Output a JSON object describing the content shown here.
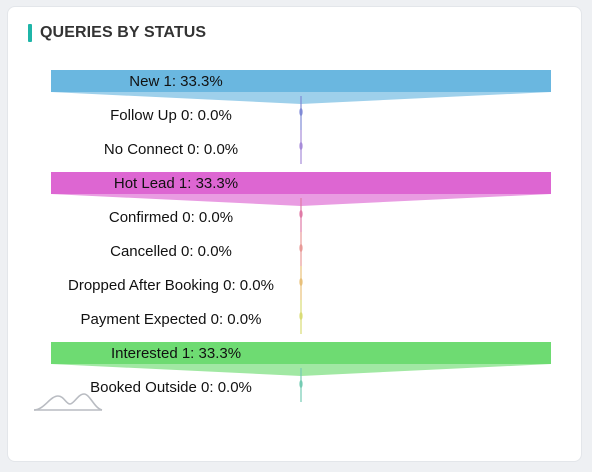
{
  "widget": {
    "title": "QUERIES BY STATUS",
    "accent_color": "#1fb5a8",
    "logo_icon": "hills-watermark-icon"
  },
  "chart_data": {
    "type": "funnel",
    "title": "QUERIES BY STATUS",
    "stages": [
      {
        "label": "New 1: 33.3%",
        "name": "New",
        "value": 1,
        "percent": 33.3,
        "color": "#6ab7e0"
      },
      {
        "label": "Follow Up 0: 0.0%",
        "name": "Follow Up",
        "value": 0,
        "percent": 0.0,
        "color": "#7f8ad6"
      },
      {
        "label": "No Connect 0: 0.0%",
        "name": "No Connect",
        "value": 0,
        "percent": 0.0,
        "color": "#a78bd9"
      },
      {
        "label": "Hot Lead 1: 33.3%",
        "name": "Hot Lead",
        "value": 1,
        "percent": 33.3,
        "color": "#dd66d2"
      },
      {
        "label": "Confirmed 0: 0.0%",
        "name": "Confirmed",
        "value": 0,
        "percent": 0.0,
        "color": "#e07aa6"
      },
      {
        "label": "Cancelled 0: 0.0%",
        "name": "Cancelled",
        "value": 0,
        "percent": 0.0,
        "color": "#e89a98"
      },
      {
        "label": "Dropped After Booking 0: 0.0%",
        "name": "Dropped After Booking",
        "value": 0,
        "percent": 0.0,
        "color": "#e8c07a"
      },
      {
        "label": "Payment Expected 0: 0.0%",
        "name": "Payment Expected",
        "value": 0,
        "percent": 0.0,
        "color": "#d9dc76"
      },
      {
        "label": "Interested 1: 33.3%",
        "name": "Interested",
        "value": 1,
        "percent": 33.3,
        "color": "#6edb72"
      },
      {
        "label": "Booked Outside 0: 0.0%",
        "name": "Booked Outside",
        "value": 0,
        "percent": 0.0,
        "color": "#74cbb3"
      }
    ]
  }
}
